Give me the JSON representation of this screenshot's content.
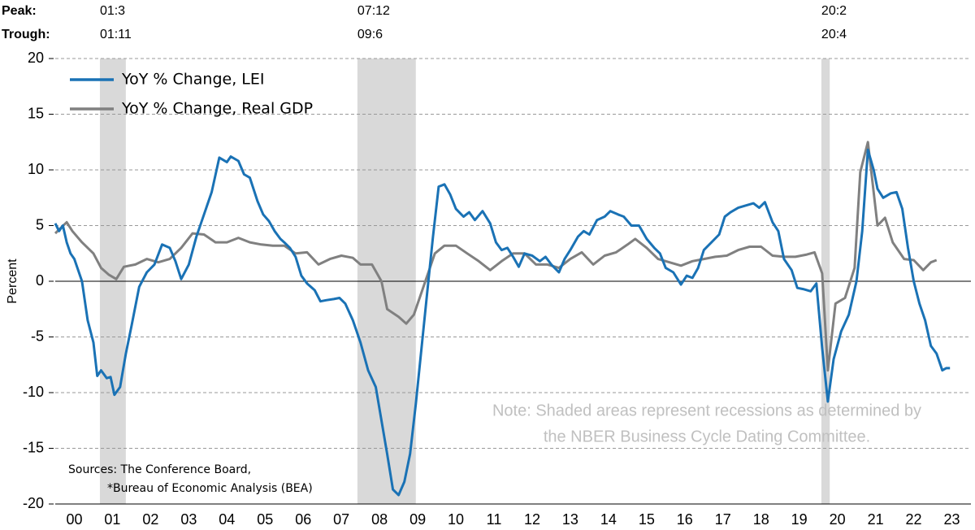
{
  "chart_data": {
    "type": "line",
    "y_label": "Percent",
    "peak_label": "Peak:",
    "trough_label": "Trough:",
    "recessions": [
      {
        "peak": "01:3",
        "trough": "01:11",
        "start": 2001.17,
        "end": 2001.85
      },
      {
        "peak": "07:12",
        "trough": "09:6",
        "start": 2007.92,
        "end": 2009.45
      },
      {
        "peak": "20:2",
        "trough": "20:4",
        "start": 2020.08,
        "end": 2020.3
      }
    ],
    "note": [
      "Note: Shaded areas represent recessions as determined by",
      "the NBER Business Cycle Dating Committee."
    ],
    "sources": [
      "Sources: The Conference Board,",
      "*Bureau of Economic Analysis (BEA)"
    ],
    "xlim": [
      2000,
      2024
    ],
    "xticks": [
      {
        "value": 2000.5,
        "label": "00"
      },
      {
        "value": 2001.5,
        "label": "01"
      },
      {
        "value": 2002.5,
        "label": "02"
      },
      {
        "value": 2003.5,
        "label": "03"
      },
      {
        "value": 2004.5,
        "label": "04"
      },
      {
        "value": 2005.5,
        "label": "05"
      },
      {
        "value": 2006.5,
        "label": "06"
      },
      {
        "value": 2007.5,
        "label": "07"
      },
      {
        "value": 2008.5,
        "label": "08"
      },
      {
        "value": 2009.5,
        "label": "09"
      },
      {
        "value": 2010.5,
        "label": "10"
      },
      {
        "value": 2011.5,
        "label": "11"
      },
      {
        "value": 2012.5,
        "label": "12"
      },
      {
        "value": 2013.5,
        "label": "13"
      },
      {
        "value": 2014.5,
        "label": "14"
      },
      {
        "value": 2015.5,
        "label": "15"
      },
      {
        "value": 2016.5,
        "label": "16"
      },
      {
        "value": 2017.5,
        "label": "17"
      },
      {
        "value": 2018.5,
        "label": "18"
      },
      {
        "value": 2019.5,
        "label": "19"
      },
      {
        "value": 2020.5,
        "label": "20"
      },
      {
        "value": 2021.5,
        "label": "21"
      },
      {
        "value": 2022.5,
        "label": "22"
      },
      {
        "value": 2023.5,
        "label": "23"
      }
    ],
    "ylim": [
      -20,
      20
    ],
    "yticks": [
      -20,
      -15,
      -10,
      -5,
      0,
      5,
      10,
      15,
      20
    ],
    "grid": true,
    "series": [
      {
        "name": "YoY % Change, LEI",
        "color": "#1a72b5",
        "x": [
          2000.0,
          2000.1,
          2000.2,
          2000.3,
          2000.4,
          2000.5,
          2000.7,
          2000.85,
          2001.0,
          2001.1,
          2001.2,
          2001.35,
          2001.45,
          2001.55,
          2001.7,
          2001.85,
          2002.0,
          2002.2,
          2002.4,
          2002.6,
          2002.8,
          2003.0,
          2003.15,
          2003.3,
          2003.5,
          2003.7,
          2003.9,
          2004.1,
          2004.3,
          2004.5,
          2004.6,
          2004.8,
          2004.95,
          2005.1,
          2005.3,
          2005.45,
          2005.6,
          2005.75,
          2005.9,
          2006.0,
          2006.15,
          2006.3,
          2006.45,
          2006.6,
          2006.8,
          2006.95,
          2007.1,
          2007.3,
          2007.45,
          2007.6,
          2007.8,
          2008.0,
          2008.2,
          2008.4,
          2008.55,
          2008.7,
          2008.85,
          2009.0,
          2009.15,
          2009.3,
          2009.45,
          2009.6,
          2009.75,
          2009.9,
          2010.05,
          2010.2,
          2010.35,
          2010.5,
          2010.7,
          2010.85,
          2011.0,
          2011.2,
          2011.4,
          2011.55,
          2011.7,
          2011.85,
          2012.0,
          2012.15,
          2012.3,
          2012.5,
          2012.7,
          2012.85,
          2013.0,
          2013.2,
          2013.35,
          2013.5,
          2013.7,
          2013.85,
          2014.0,
          2014.2,
          2014.4,
          2014.55,
          2014.75,
          2014.9,
          2015.1,
          2015.3,
          2015.5,
          2015.7,
          2015.85,
          2016.0,
          2016.2,
          2016.4,
          2016.55,
          2016.7,
          2016.85,
          2017.0,
          2017.2,
          2017.4,
          2017.55,
          2017.7,
          2017.9,
          2018.1,
          2018.3,
          2018.45,
          2018.6,
          2018.8,
          2018.95,
          2019.1,
          2019.3,
          2019.45,
          2019.6,
          2019.8,
          2019.95,
          2020.1,
          2020.25,
          2020.4,
          2020.6,
          2020.8,
          2021.0,
          2021.15,
          2021.3,
          2021.45,
          2021.55,
          2021.7,
          2021.9,
          2022.05,
          2022.2,
          2022.35,
          2022.5,
          2022.65,
          2022.8,
          2022.95,
          2023.1,
          2023.25,
          2023.35,
          2023.45
        ],
        "values": [
          5.2,
          4.5,
          5.0,
          3.5,
          2.5,
          2.0,
          0.0,
          -3.5,
          -5.5,
          -8.5,
          -8.0,
          -8.7,
          -8.6,
          -10.2,
          -9.5,
          -6.5,
          -4.0,
          -0.5,
          0.8,
          1.5,
          3.3,
          3.0,
          1.8,
          0.2,
          1.5,
          4.0,
          6.0,
          8.0,
          11.1,
          10.7,
          11.2,
          10.8,
          9.6,
          9.3,
          7.2,
          6.0,
          5.4,
          4.5,
          3.8,
          3.5,
          3.0,
          2.2,
          0.5,
          -0.2,
          -0.8,
          -1.8,
          -1.7,
          -1.6,
          -1.5,
          -2.0,
          -3.5,
          -5.5,
          -8.0,
          -9.5,
          -12.5,
          -15.5,
          -18.7,
          -19.2,
          -18.0,
          -15.5,
          -11.0,
          -6.0,
          -1.0,
          4.0,
          8.5,
          8.7,
          7.8,
          6.5,
          5.8,
          6.2,
          5.5,
          6.3,
          5.2,
          3.5,
          2.8,
          3.0,
          2.2,
          1.3,
          2.5,
          2.3,
          1.8,
          2.2,
          1.5,
          0.8,
          2.0,
          2.8,
          4.0,
          4.5,
          4.2,
          5.5,
          5.8,
          6.3,
          6.0,
          5.8,
          5.0,
          5.0,
          3.8,
          3.0,
          2.5,
          1.2,
          0.8,
          -0.3,
          0.5,
          0.3,
          1.2,
          2.8,
          3.5,
          4.2,
          5.8,
          6.2,
          6.6,
          6.8,
          7.0,
          6.6,
          7.1,
          5.3,
          4.5,
          2.0,
          1.0,
          -0.6,
          -0.7,
          -0.9,
          -0.2,
          -6.0,
          -10.8,
          -7.0,
          -4.5,
          -3.0,
          0.0,
          4.5,
          11.8,
          10.0,
          8.3,
          7.5,
          7.9,
          8.0,
          6.5,
          3.0,
          0.0,
          -2.0,
          -3.5,
          -5.8,
          -6.5,
          -8.0,
          -7.8,
          -7.8
        ]
      },
      {
        "name": "YoY % Change, Real GDP",
        "color": "#808080",
        "x": [
          2000.0,
          2000.15,
          2000.3,
          2000.45,
          2000.7,
          2001.0,
          2001.2,
          2001.4,
          2001.6,
          2001.8,
          2002.1,
          2002.4,
          2002.7,
          2003.0,
          2003.3,
          2003.6,
          2003.9,
          2004.2,
          2004.5,
          2004.8,
          2005.1,
          2005.4,
          2005.7,
          2006.0,
          2006.3,
          2006.6,
          2006.9,
          2007.2,
          2007.5,
          2007.8,
          2008.0,
          2008.3,
          2008.55,
          2008.7,
          2009.0,
          2009.2,
          2009.4,
          2009.7,
          2009.95,
          2010.2,
          2010.5,
          2010.8,
          2011.1,
          2011.4,
          2011.7,
          2012.0,
          2012.3,
          2012.6,
          2012.9,
          2013.2,
          2013.5,
          2013.8,
          2014.1,
          2014.4,
          2014.7,
          2015.0,
          2015.2,
          2015.5,
          2015.8,
          2016.1,
          2016.4,
          2016.7,
          2017.0,
          2017.3,
          2017.6,
          2017.9,
          2018.2,
          2018.5,
          2018.8,
          2019.1,
          2019.4,
          2019.7,
          2019.9,
          2020.1,
          2020.25,
          2020.45,
          2020.7,
          2020.95,
          2021.1,
          2021.3,
          2021.55,
          2021.75,
          2021.95,
          2022.25,
          2022.5,
          2022.75,
          2022.95,
          2023.1
        ],
        "values": [
          4.3,
          4.8,
          5.3,
          4.5,
          3.5,
          2.5,
          1.2,
          0.6,
          0.2,
          1.3,
          1.5,
          2.0,
          1.7,
          2.0,
          3.0,
          4.3,
          4.2,
          3.5,
          3.5,
          3.9,
          3.5,
          3.3,
          3.2,
          3.2,
          2.5,
          2.6,
          1.5,
          2.0,
          2.3,
          2.1,
          1.5,
          1.5,
          0.0,
          -2.5,
          -3.2,
          -3.8,
          -3.0,
          0.0,
          2.5,
          3.2,
          3.2,
          2.5,
          1.8,
          1.0,
          1.8,
          2.5,
          2.5,
          1.5,
          1.5,
          1.2,
          2.0,
          2.6,
          1.5,
          2.3,
          2.6,
          3.3,
          3.8,
          3.0,
          2.0,
          1.7,
          1.4,
          1.8,
          2.0,
          2.2,
          2.3,
          2.8,
          3.1,
          3.1,
          2.3,
          2.2,
          2.2,
          2.4,
          2.6,
          0.7,
          -8.0,
          -2.0,
          -1.5,
          1.2,
          9.8,
          12.5,
          5.0,
          5.7,
          3.5,
          2.0,
          1.9,
          1.0,
          1.7,
          1.9
        ]
      }
    ]
  }
}
